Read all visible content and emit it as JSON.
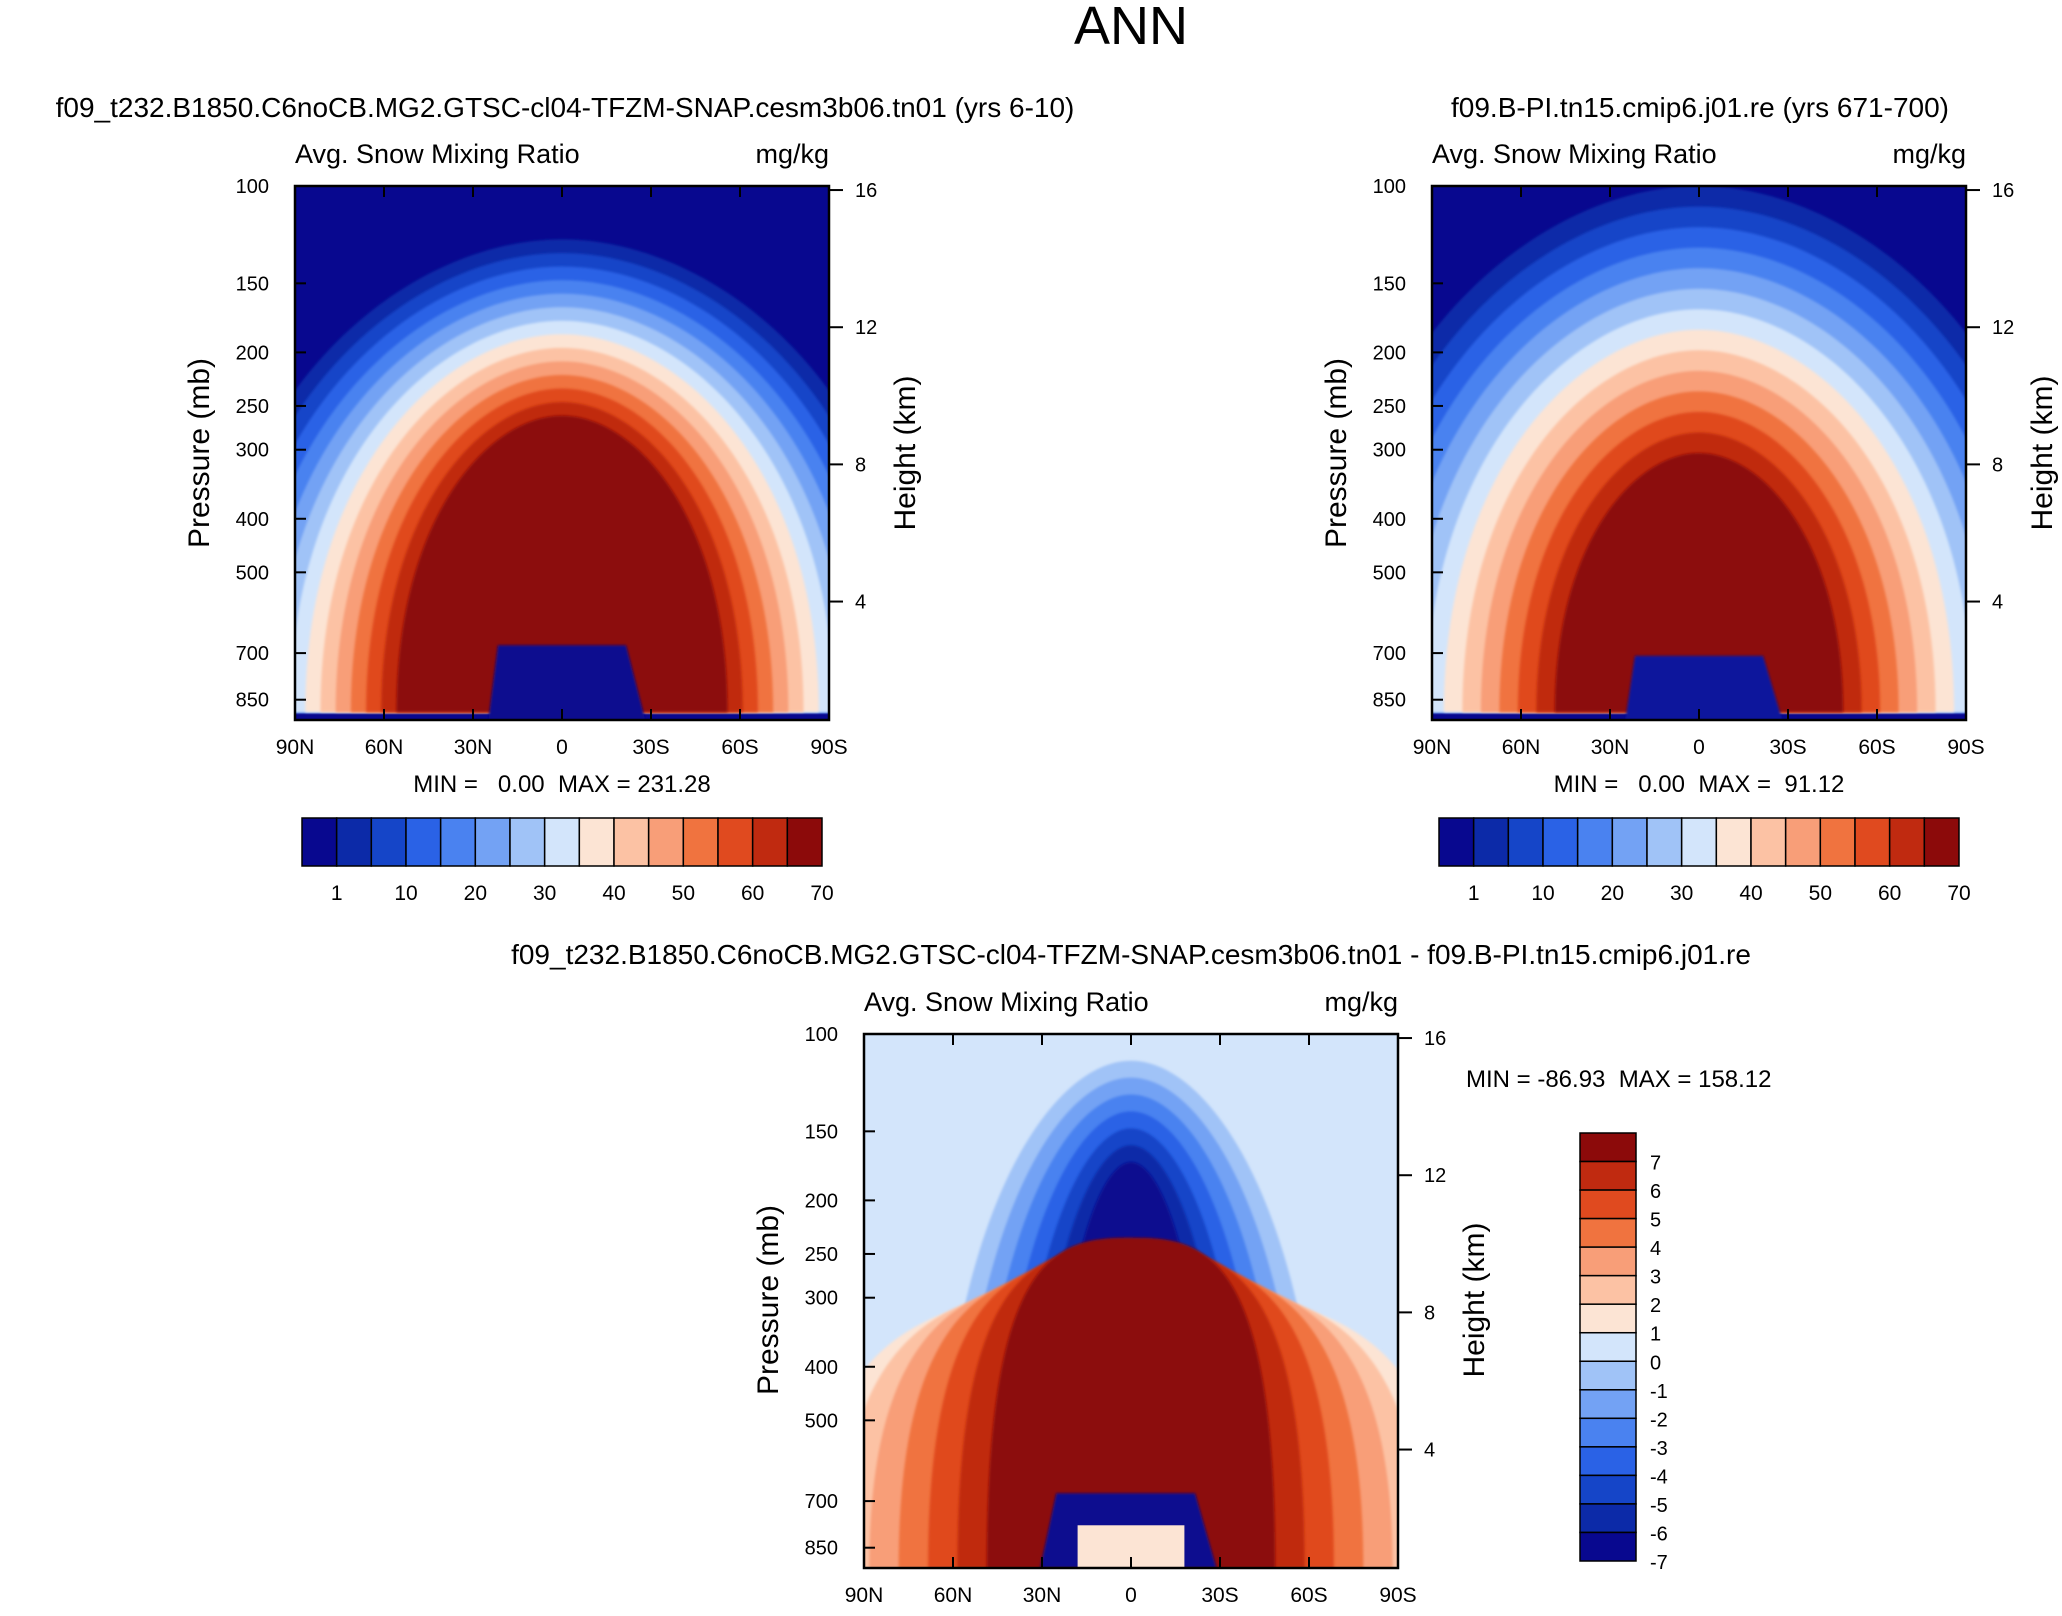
{
  "figure": {
    "title": "ANN"
  },
  "colors": {
    "abs_scale": [
      "#08088f",
      "#0c2aa8",
      "#1545c8",
      "#2a62e6",
      "#4a82f0",
      "#73a2f4",
      "#a0c3f7",
      "#d3e5fb",
      "#fce4d4",
      "#fcc2a4",
      "#f89e78",
      "#f0733f",
      "#e04a1f",
      "#c02a10",
      "#8c0a0a"
    ],
    "diff_scale": [
      "#08088f",
      "#0c2aa8",
      "#1545c8",
      "#2a62e6",
      "#4a82f0",
      "#73a2f4",
      "#a0c3f7",
      "#d3e5fb",
      "#fce4d4",
      "#fcc2a4",
      "#f89e78",
      "#f0733f",
      "#e04a1f",
      "#c02a10",
      "#8c0a0a"
    ]
  },
  "panels": [
    {
      "case_title": "f09_t232.B1850.C6noCB.MG2.GTSC-cl04-TFZM-SNAP.cesm3b06.tn01 (yrs 6-10)",
      "left_label": "Avg. Snow Mixing Ratio",
      "right_label": "mg/kg",
      "ylabel": "Pressure (mb)",
      "y2label": "Height (km)",
      "stats": "MIN =   0.00  MAX = 231.28"
    },
    {
      "case_title": "f09.B-PI.tn15.cmip6.j01.re (yrs 671-700)",
      "left_label": "Avg. Snow Mixing Ratio",
      "right_label": "mg/kg",
      "ylabel": "Pressure (mb)",
      "y2label": "Height (km)",
      "stats": "MIN =   0.00  MAX =  91.12"
    },
    {
      "case_title": "f09_t232.B1850.C6noCB.MG2.GTSC-cl04-TFZM-SNAP.cesm3b06.tn01 - f09.B-PI.tn15.cmip6.j01.re",
      "left_label": "Avg. Snow Mixing Ratio",
      "right_label": "mg/kg",
      "ylabel": "Pressure (mb)",
      "y2label": "Height (km)",
      "stats": "MIN = -86.93  MAX = 158.12"
    }
  ],
  "chart_data": [
    {
      "type": "heatmap",
      "title": "f09_t232.B1850.C6noCB.MG2.GTSC-cl04-TFZM-SNAP.cesm3b06.tn01 (yrs 6-10)",
      "xlabel": "",
      "ylabel": "Pressure (mb)",
      "y2label": "Height (km)",
      "x_ticks": [
        "90N",
        "60N",
        "30N",
        "0",
        "30S",
        "60S",
        "90S"
      ],
      "y_ticks": [
        100,
        150,
        200,
        250,
        300,
        400,
        500,
        700,
        850
      ],
      "y2_ticks": [
        16,
        12,
        8,
        4
      ],
      "xlim": [
        -90,
        90
      ],
      "ylim": [
        100,
        925
      ],
      "colorbar_labels": [
        "1",
        "10",
        "20",
        "30",
        "40",
        "50",
        "60",
        "70"
      ],
      "min": 0.0,
      "max": 231.28
    },
    {
      "type": "heatmap",
      "title": "f09.B-PI.tn15.cmip6.j01.re (yrs 671-700)",
      "xlabel": "",
      "ylabel": "Pressure (mb)",
      "y2label": "Height (km)",
      "x_ticks": [
        "90N",
        "60N",
        "30N",
        "0",
        "30S",
        "60S",
        "90S"
      ],
      "y_ticks": [
        100,
        150,
        200,
        250,
        300,
        400,
        500,
        700,
        850
      ],
      "y2_ticks": [
        16,
        12,
        8,
        4
      ],
      "xlim": [
        -90,
        90
      ],
      "ylim": [
        100,
        925
      ],
      "colorbar_labels": [
        "1",
        "10",
        "20",
        "30",
        "40",
        "50",
        "60",
        "70"
      ],
      "min": 0.0,
      "max": 91.12
    },
    {
      "type": "heatmap",
      "title": "f09_t232.B1850.C6noCB.MG2.GTSC-cl04-TFZM-SNAP.cesm3b06.tn01 - f09.B-PI.tn15.cmip6.j01.re",
      "xlabel": "",
      "ylabel": "Pressure (mb)",
      "y2label": "Height (km)",
      "x_ticks": [
        "90N",
        "60N",
        "30N",
        "0",
        "30S",
        "60S",
        "90S"
      ],
      "y_ticks": [
        100,
        150,
        200,
        250,
        300,
        400,
        500,
        700,
        850
      ],
      "y2_ticks": [
        16,
        12,
        8,
        4
      ],
      "xlim": [
        -90,
        90
      ],
      "ylim": [
        100,
        925
      ],
      "colorbar_labels": [
        "7",
        "6",
        "5",
        "4",
        "3",
        "2",
        "1",
        "0",
        "-1",
        "-2",
        "-3",
        "-4",
        "-5",
        "-6",
        "-7"
      ],
      "min": -86.93,
      "max": 158.12
    }
  ]
}
